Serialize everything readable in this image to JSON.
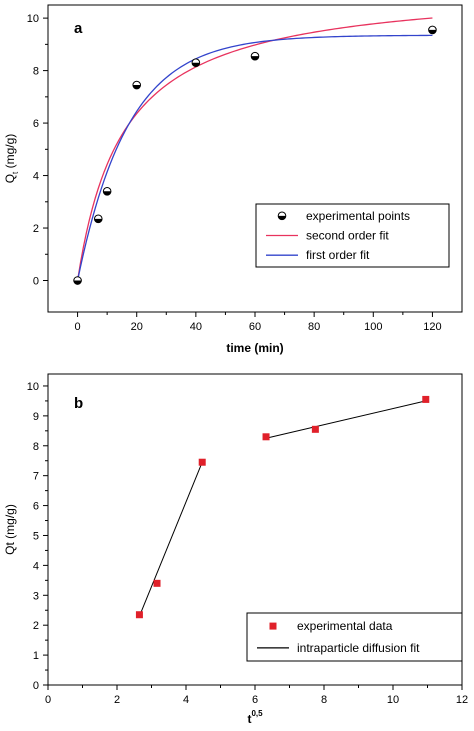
{
  "chart_data": [
    {
      "panel": "a",
      "type": "scatter",
      "xlabel": "time (min)",
      "ylabel": "Q",
      "ylabel_sub": "t",
      "ylabel_unit": " (mg/g)",
      "xlim": [
        -10,
        130
      ],
      "ylim": [
        -1.2,
        10.5
      ],
      "xticks": [
        0,
        20,
        40,
        60,
        80,
        100,
        120
      ],
      "yticks": [
        0,
        2,
        4,
        6,
        8,
        10
      ],
      "grid": false,
      "legend_position": "bottom-right",
      "series": [
        {
          "name": "experimental points",
          "kind": "points",
          "marker": "half-filled-circle",
          "color": "#000000",
          "x": [
            0,
            7,
            10,
            20,
            40,
            60,
            120
          ],
          "y": [
            0.0,
            2.35,
            3.4,
            7.45,
            8.3,
            8.55,
            9.55
          ]
        },
        {
          "name": "second order fit",
          "kind": "curve",
          "color": "#e8335e",
          "model": "pseudo-second-order",
          "qe": 11.3,
          "k": 0.0057,
          "x_range": [
            0,
            120
          ]
        },
        {
          "name": "first order fit",
          "kind": "curve",
          "color": "#3344cc",
          "model": "pseudo-first-order",
          "qe": 9.35,
          "k": 0.0585,
          "x_range": [
            0,
            120
          ]
        }
      ]
    },
    {
      "panel": "b",
      "type": "scatter",
      "xlabel": "t",
      "xlabel_sup": "0,5",
      "ylabel": "Qt (mg/g)",
      "xlim": [
        0,
        12
      ],
      "ylim": [
        0,
        10.4
      ],
      "xticks": [
        0,
        2,
        4,
        6,
        8,
        10,
        12
      ],
      "yticks": [
        0,
        1,
        2,
        3,
        4,
        5,
        6,
        7,
        8,
        9,
        10
      ],
      "grid": false,
      "legend_position": "bottom-right",
      "series": [
        {
          "name": "experimental data",
          "kind": "points",
          "marker": "square",
          "color": "#e0202a",
          "x": [
            2.65,
            3.16,
            4.47,
            6.32,
            7.75,
            10.95
          ],
          "y": [
            2.35,
            3.4,
            7.45,
            8.3,
            8.55,
            9.55
          ]
        },
        {
          "name": "intraparticle diffusion fit",
          "kind": "segments",
          "color": "#000000",
          "segments": [
            [
              [
                2.65,
                2.3
              ],
              [
                4.47,
                7.45
              ]
            ],
            [
              [
                6.32,
                8.25
              ],
              [
                10.95,
                9.5
              ]
            ]
          ]
        }
      ]
    }
  ]
}
